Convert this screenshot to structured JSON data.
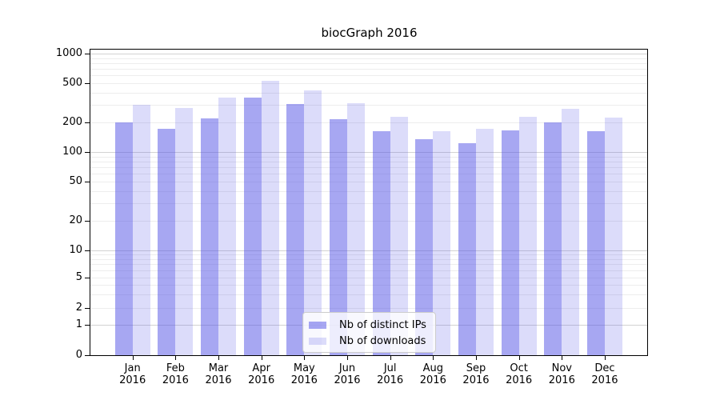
{
  "title": "biocGraph 2016",
  "colors": {
    "bars_base": "#5050e6",
    "ips_opacity": 0.5,
    "downloads_opacity": 0.2,
    "grid_minor": "#ededed",
    "grid_major": "#d2d2d2",
    "axis": "#000000",
    "legend_border": "#cccccc"
  },
  "legend": {
    "position": "lower center",
    "items": [
      {
        "label": "Nb of distinct IPs",
        "series": "ips"
      },
      {
        "label": "Nb of downloads",
        "series": "downloads"
      }
    ]
  },
  "chart_data": {
    "type": "bar",
    "title": "biocGraph 2016",
    "xlabel": "",
    "ylabel": "",
    "yscale": "log-like (ticks 0,1,2,5,10,20,50,100,200,500,1000)",
    "grid": true,
    "legend_position": "lower center",
    "categories": [
      {
        "month": "Jan",
        "year": "2016"
      },
      {
        "month": "Feb",
        "year": "2016"
      },
      {
        "month": "Mar",
        "year": "2016"
      },
      {
        "month": "Apr",
        "year": "2016"
      },
      {
        "month": "May",
        "year": "2016"
      },
      {
        "month": "Jun",
        "year": "2016"
      },
      {
        "month": "Jul",
        "year": "2016"
      },
      {
        "month": "Aug",
        "year": "2016"
      },
      {
        "month": "Sep",
        "year": "2016"
      },
      {
        "month": "Oct",
        "year": "2016"
      },
      {
        "month": "Nov",
        "year": "2016"
      },
      {
        "month": "Dec",
        "year": "2016"
      }
    ],
    "series": [
      {
        "name": "Nb of distinct IPs",
        "values": [
          200,
          172,
          220,
          358,
          310,
          216,
          164,
          135,
          122,
          166,
          200,
          162
        ]
      },
      {
        "name": "Nb of downloads",
        "values": [
          300,
          280,
          360,
          528,
          425,
          316,
          228,
          164,
          172,
          227,
          276,
          223
        ]
      }
    ],
    "y_ticks": [
      0,
      1,
      2,
      5,
      10,
      20,
      50,
      100,
      200,
      500,
      1000
    ],
    "ylim": [
      0,
      1200
    ]
  }
}
